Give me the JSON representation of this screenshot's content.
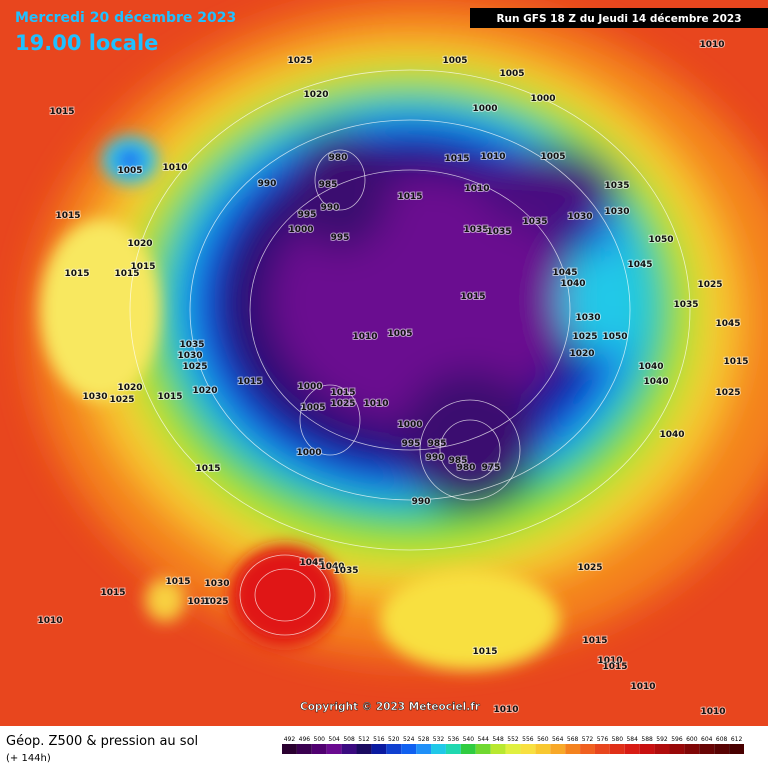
{
  "header": {
    "date": "Mercredi 20 décembre 2023",
    "time": "19.00 locale",
    "run": "Run GFS 18 Z du Jeudi 14 décembre 2023"
  },
  "footer": {
    "title": "Géop. Z500 & pression au sol",
    "lead": "(+ 144h)",
    "copyright": "Copyright © 2023 Meteociel.fr"
  },
  "scale": [
    492,
    496,
    500,
    504,
    508,
    512,
    516,
    520,
    524,
    528,
    532,
    536,
    540,
    544,
    548,
    552,
    556,
    560,
    564,
    568,
    572,
    576,
    580,
    584,
    588,
    592,
    596,
    600,
    604,
    608,
    612
  ],
  "isobar_labels": [
    "1025",
    "1005",
    "1005",
    "1010",
    "1000",
    "1020",
    "1000",
    "1015",
    "1005",
    "1010",
    "980",
    "1015",
    "1010",
    "1005",
    "990",
    "985",
    "1010",
    "1035",
    "1015",
    "990",
    "995",
    "1030",
    "1030",
    "1035",
    "1015",
    "1000",
    "1035",
    "1035",
    "995",
    "1050",
    "1020",
    "1015",
    "1015",
    "1015",
    "1045",
    "1045",
    "1040",
    "1025",
    "1015",
    "1035",
    "1030",
    "1045",
    "1010",
    "1005",
    "1035",
    "1050",
    "1025",
    "1030",
    "1020",
    "1025",
    "1015",
    "1040",
    "1015",
    "1000",
    "1020",
    "1020",
    "1030",
    "1025",
    "1015",
    "1015",
    "1040",
    "1025",
    "1010",
    "1005",
    "1025",
    "1000",
    "995",
    "985",
    "990",
    "985",
    "980",
    "975",
    "1040",
    "1000",
    "1015",
    "990",
    "1045",
    "1040",
    "1035",
    "1025",
    "1015",
    "1030",
    "1015",
    "1010",
    "1025",
    "1010",
    "1015",
    "1015",
    "1010",
    "1015",
    "1010",
    "1010",
    "1010"
  ]
}
